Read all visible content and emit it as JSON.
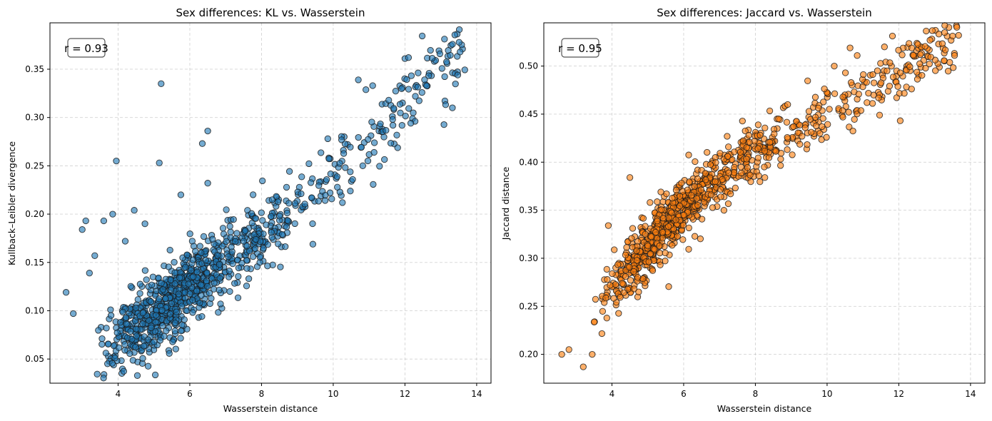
{
  "chart_data": [
    {
      "type": "scatter",
      "title": "Sex differences: KL vs. Wasserstein",
      "xlabel": "Wasserstein distance",
      "ylabel": "Kullback–Leibler divergence",
      "xlim": [
        2.1,
        14.4
      ],
      "ylim": [
        0.025,
        0.398
      ],
      "xticks": [
        4,
        6,
        8,
        10,
        12,
        14
      ],
      "yticks": [
        0.05,
        0.1,
        0.15,
        0.2,
        0.25,
        0.3,
        0.35
      ],
      "ytick_decimals": 2,
      "grid": true,
      "annotation": "r = 0.93",
      "color": "#1f77b4",
      "n_points": 1000,
      "trend": {
        "x": [
          3.3,
          5.0,
          6.5,
          8.0,
          9.3,
          11.0,
          12.5,
          13.7
        ],
        "y": [
          0.055,
          0.095,
          0.14,
          0.18,
          0.22,
          0.27,
          0.33,
          0.375
        ]
      },
      "spread": 0.022,
      "outliers": [
        [
          2.55,
          0.119
        ],
        [
          2.75,
          0.097
        ],
        [
          3.0,
          0.184
        ],
        [
          3.1,
          0.193
        ],
        [
          3.2,
          0.139
        ],
        [
          3.35,
          0.157
        ],
        [
          3.6,
          0.193
        ],
        [
          3.85,
          0.2
        ],
        [
          3.95,
          0.255
        ],
        [
          4.2,
          0.172
        ],
        [
          4.45,
          0.204
        ],
        [
          4.75,
          0.19
        ],
        [
          5.2,
          0.335
        ],
        [
          5.15,
          0.253
        ],
        [
          5.75,
          0.22
        ],
        [
          6.35,
          0.273
        ],
        [
          6.5,
          0.286
        ],
        [
          6.5,
          0.232
        ],
        [
          10.7,
          0.339
        ],
        [
          11.1,
          0.333
        ],
        [
          12.0,
          0.361
        ],
        [
          12.1,
          0.362
        ]
      ]
    },
    {
      "type": "scatter",
      "title": "Sex differences: Jaccard vs. Wasserstein",
      "xlabel": "Wasserstein distance",
      "ylabel": "Jaccard distance",
      "xlim": [
        2.1,
        14.4
      ],
      "ylim": [
        0.17,
        0.545
      ],
      "xticks": [
        4,
        6,
        8,
        10,
        12,
        14
      ],
      "yticks": [
        0.2,
        0.25,
        0.3,
        0.35,
        0.4,
        0.45,
        0.5
      ],
      "ytick_decimals": 2,
      "grid": true,
      "annotation": "r = 0.95",
      "color": "#ff7f0e",
      "n_points": 1000,
      "trend": {
        "x": [
          2.6,
          3.5,
          4.5,
          5.5,
          6.5,
          7.5,
          8.5,
          9.5,
          10.5,
          11.5,
          12.5,
          13.7
        ],
        "y": [
          0.205,
          0.245,
          0.285,
          0.335,
          0.37,
          0.4,
          0.42,
          0.44,
          0.465,
          0.48,
          0.505,
          0.527
        ]
      },
      "spread": 0.016,
      "outliers": [
        [
          2.6,
          0.2
        ],
        [
          2.8,
          0.205
        ],
        [
          3.2,
          0.187
        ],
        [
          3.45,
          0.2
        ],
        [
          3.9,
          0.334
        ],
        [
          4.5,
          0.384
        ],
        [
          8.9,
          0.46
        ],
        [
          9.3,
          0.427
        ],
        [
          9.8,
          0.43
        ],
        [
          10.2,
          0.5
        ],
        [
          11.6,
          0.52
        ],
        [
          12.6,
          0.512
        ]
      ]
    }
  ]
}
